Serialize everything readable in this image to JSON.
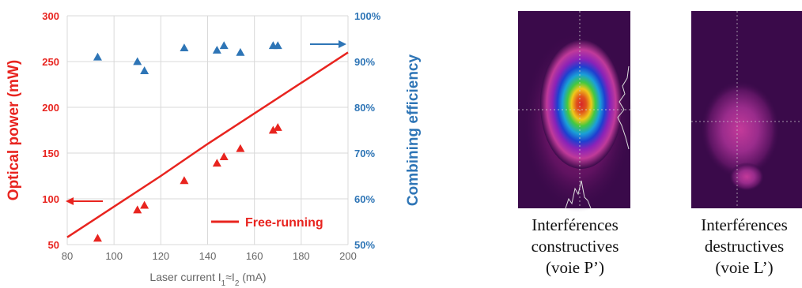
{
  "chart_data": {
    "type": "scatter",
    "title": "",
    "xlabel": "Laser current  I",
    "xlabel_sub1": "1",
    "xlabel_mid": "≈I",
    "xlabel_sub2": "2",
    "xlabel_end": " (mA)",
    "ylabel": "Optical power (mW)",
    "y2label": "Combining efficiency",
    "xlim": [
      80,
      200
    ],
    "ylim": [
      50,
      300
    ],
    "y2lim": [
      50,
      100
    ],
    "x_ticks": [
      80,
      100,
      120,
      140,
      160,
      180,
      200
    ],
    "y_ticks": [
      50,
      100,
      150,
      200,
      250,
      300
    ],
    "y2_ticks": [
      "50%",
      "60%",
      "70%",
      "80%",
      "90%",
      "100%"
    ],
    "grid": true,
    "legend": "bottom-right",
    "colors": {
      "power": "#e8241f",
      "efficiency": "#2e75b6"
    },
    "series": [
      {
        "id": "power",
        "axis": "left",
        "marker": "triangle",
        "x": [
          93,
          110,
          113,
          130,
          144,
          147,
          154,
          168,
          170
        ],
        "y": [
          57,
          88,
          93,
          120,
          139,
          146,
          155,
          175,
          178
        ]
      },
      {
        "id": "efficiency",
        "axis": "right",
        "marker": "triangle",
        "x": [
          93,
          110,
          113,
          130,
          144,
          147,
          154,
          168,
          170
        ],
        "y": [
          91,
          90,
          88,
          93,
          92.5,
          93.5,
          92,
          93.5,
          93.5
        ]
      },
      {
        "id": "free-running",
        "name": "Free-running",
        "axis": "left",
        "type": "line",
        "x": [
          80,
          120,
          140,
          200
        ],
        "y": [
          58,
          125,
          160,
          260
        ]
      }
    ]
  },
  "captions": {
    "left": [
      "Interférences",
      "constructives",
      "(voie P’)"
    ],
    "right": [
      "Interférences",
      "destructives",
      "(voie L’)"
    ]
  }
}
